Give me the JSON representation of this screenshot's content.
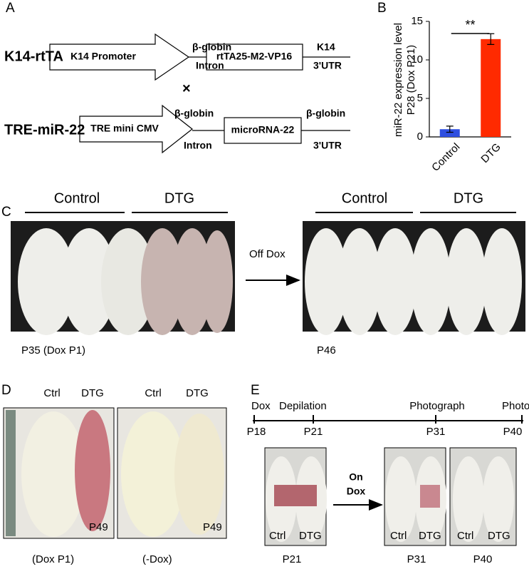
{
  "panel_labels": [
    "A",
    "B",
    "C",
    "D",
    "E"
  ],
  "panel_a": {
    "row1": {
      "name": "K14-rtTA",
      "promoter": "K14 Promoter",
      "linker_top": "β-globin",
      "linker_bottom": "Intron",
      "gene": "rtTA25-M2-VP16",
      "utr_top": "K14",
      "utr_bottom": "3'UTR"
    },
    "cross": "×",
    "row2": {
      "name": "TRE-miR-22",
      "promoter": "TRE mini CMV",
      "linker_top": "β-globin",
      "linker_bottom": "Intron",
      "gene": "microRNA-22",
      "utr_top": "β-globin",
      "utr_bottom": "3'UTR"
    }
  },
  "chart_data": {
    "type": "bar",
    "ylabel": [
      "miR-22 expression level",
      "P28 (Dox P21)"
    ],
    "categories": [
      "Control",
      "DTG"
    ],
    "values": [
      1.0,
      12.7
    ],
    "errors": [
      0.4,
      0.7
    ],
    "colors": [
      "#2f4fe0",
      "#ff2a00"
    ],
    "ylim": [
      0,
      15
    ],
    "yticks": [
      0,
      5,
      10,
      15
    ],
    "significance": "**"
  },
  "panel_c": {
    "left_groups": [
      "Control",
      "DTG"
    ],
    "right_groups": [
      "Control",
      "DTG"
    ],
    "arrow_label": "Off Dox",
    "left_caption": "P35 (Dox P1)",
    "right_caption": "P46"
  },
  "panel_d": {
    "left": {
      "labels": [
        "Ctrl",
        "DTG"
      ],
      "age": "P49",
      "caption": "(Dox P1)"
    },
    "right": {
      "labels": [
        "Ctrl",
        "DTG"
      ],
      "age": "P49",
      "caption": "(-Dox)"
    }
  },
  "panel_e": {
    "events": [
      "Dox",
      "Depilation",
      "Photograph",
      "Photograph"
    ],
    "days": [
      "P18",
      "P21",
      "P31",
      "P40"
    ],
    "arrow_label": [
      "On",
      "Dox"
    ],
    "photo_labels": [
      "Ctrl",
      "DTG"
    ],
    "captions": [
      "P21",
      "P31",
      "P40"
    ]
  }
}
